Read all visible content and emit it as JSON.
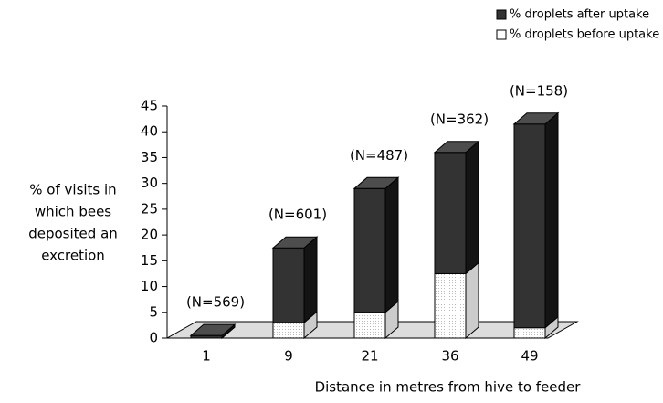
{
  "chart_data": {
    "type": "bar3d-stacked",
    "categories": [
      "1",
      "9",
      "21",
      "36",
      "49"
    ],
    "series": [
      {
        "name": "% droplets before uptake",
        "color": "#ffffff",
        "values": [
          0,
          3,
          5,
          12.5,
          2
        ]
      },
      {
        "name": "% droplets after uptake",
        "color": "#333333",
        "values": [
          0.5,
          14.5,
          24,
          23.5,
          39.5
        ]
      }
    ],
    "annotations": [
      "(N=569)",
      "(N=601)",
      "(N=487)",
      "(N=362)",
      "(N=158)"
    ],
    "ylabel": [
      "% of visits in",
      "which bees",
      "deposited an",
      "excretion"
    ],
    "xlabel": "Distance in metres from hive to feeder",
    "ylim": [
      0,
      45
    ],
    "yticks": [
      0,
      5,
      10,
      15,
      20,
      25,
      30,
      35,
      40,
      45
    ],
    "legend": "top-right"
  }
}
